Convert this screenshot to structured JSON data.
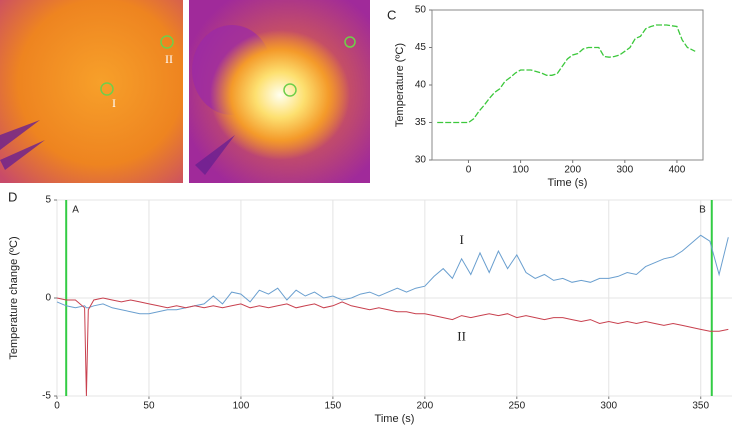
{
  "thermal_images": {
    "points": [
      "I",
      "II"
    ]
  },
  "chart_data": [
    {
      "type": "line",
      "panel": "C",
      "xlabel": "Time (s)",
      "ylabel": "Temperature (ºC)",
      "x": [
        -60,
        -40,
        -20,
        0,
        10,
        20,
        30,
        40,
        50,
        60,
        70,
        80,
        90,
        100,
        110,
        120,
        130,
        140,
        150,
        160,
        170,
        180,
        190,
        200,
        210,
        220,
        230,
        240,
        250,
        260,
        270,
        280,
        290,
        300,
        310,
        320,
        330,
        340,
        350,
        360,
        370,
        380,
        390,
        400,
        410,
        420,
        435
      ],
      "values": [
        35,
        35,
        35,
        35,
        35.5,
        36.5,
        37.3,
        38.2,
        39,
        39.5,
        40.5,
        41,
        41.6,
        42,
        42,
        42,
        41.8,
        41.6,
        41.3,
        41.3,
        41.5,
        42.5,
        43.5,
        44,
        44.2,
        44.8,
        45,
        45,
        45,
        43.8,
        43.7,
        43.8,
        44,
        44.5,
        45,
        46.2,
        46.5,
        47.5,
        47.8,
        48,
        48,
        48,
        47.9,
        47.8,
        46,
        45,
        44.5
      ],
      "color": "#3cc83c",
      "xlim": [
        -70,
        450
      ],
      "ylim": [
        30,
        50
      ],
      "xticks": [
        0,
        100,
        200,
        300,
        400
      ],
      "yticks": [
        30,
        35,
        40,
        45,
        50
      ],
      "grid": false
    },
    {
      "type": "line",
      "panel": "D",
      "xlabel": "Time (s)",
      "ylabel": "Temperature change (ºC)",
      "x": [
        0,
        5,
        10,
        15,
        16,
        17,
        20,
        25,
        30,
        35,
        40,
        45,
        50,
        55,
        60,
        65,
        70,
        75,
        80,
        85,
        90,
        95,
        100,
        105,
        110,
        115,
        120,
        125,
        130,
        135,
        140,
        145,
        150,
        155,
        160,
        165,
        170,
        175,
        180,
        185,
        190,
        195,
        200,
        205,
        210,
        215,
        220,
        225,
        230,
        235,
        240,
        245,
        250,
        255,
        260,
        265,
        270,
        275,
        280,
        285,
        290,
        295,
        300,
        305,
        310,
        315,
        320,
        325,
        330,
        335,
        340,
        345,
        350,
        355,
        360,
        365
      ],
      "series": [
        {
          "name": "I",
          "color": "#6a9fcf",
          "values": [
            -0.2,
            -0.4,
            -0.5,
            -0.4,
            -0.5,
            -0.5,
            -0.4,
            -0.3,
            -0.5,
            -0.6,
            -0.7,
            -0.8,
            -0.8,
            -0.7,
            -0.6,
            -0.6,
            -0.5,
            -0.4,
            -0.3,
            0.1,
            -0.3,
            0.3,
            0.2,
            -0.2,
            0.4,
            0.2,
            0.5,
            -0.1,
            0.4,
            0.1,
            0.3,
            0.0,
            0.1,
            -0.1,
            0.0,
            0.2,
            0.3,
            0.1,
            0.3,
            0.5,
            0.3,
            0.5,
            0.6,
            1.1,
            1.5,
            1.0,
            2.0,
            1.2,
            2.3,
            1.3,
            2.4,
            1.5,
            2.2,
            1.3,
            1.0,
            1.2,
            0.9,
            1.0,
            0.8,
            0.9,
            0.8,
            1.0,
            1.0,
            1.1,
            1.3,
            1.2,
            1.6,
            1.8,
            2.0,
            2.1,
            2.4,
            2.8,
            3.2,
            2.9,
            1.2,
            3.1
          ]
        },
        {
          "name": "II",
          "color": "#c8404e",
          "values": [
            0.0,
            -0.1,
            -0.1,
            -0.5,
            -5.0,
            -0.6,
            -0.1,
            0.0,
            -0.1,
            -0.2,
            -0.1,
            -0.2,
            -0.3,
            -0.4,
            -0.5,
            -0.4,
            -0.5,
            -0.4,
            -0.5,
            -0.4,
            -0.5,
            -0.4,
            -0.3,
            -0.5,
            -0.4,
            -0.5,
            -0.4,
            -0.3,
            -0.5,
            -0.4,
            -0.3,
            -0.5,
            -0.4,
            -0.2,
            -0.4,
            -0.5,
            -0.6,
            -0.5,
            -0.6,
            -0.7,
            -0.7,
            -0.8,
            -0.8,
            -0.9,
            -1.0,
            -1.1,
            -0.9,
            -1.0,
            -0.9,
            -0.8,
            -0.9,
            -0.8,
            -1.0,
            -0.9,
            -1.0,
            -1.1,
            -1.0,
            -1.0,
            -1.1,
            -1.2,
            -1.1,
            -1.3,
            -1.2,
            -1.3,
            -1.2,
            -1.3,
            -1.2,
            -1.3,
            -1.4,
            -1.3,
            -1.4,
            -1.5,
            -1.6,
            -1.7,
            -1.7,
            -1.6
          ]
        }
      ],
      "markers": [
        {
          "label": "A",
          "x": 5
        },
        {
          "label": "B",
          "x": 356
        }
      ],
      "marker_color": "#33cc44",
      "xlim": [
        0,
        367
      ],
      "ylim": [
        -5,
        5
      ],
      "xticks": [
        0,
        50,
        100,
        150,
        200,
        250,
        300,
        350
      ],
      "yticks": [
        -5,
        0,
        5
      ],
      "grid": true
    }
  ]
}
